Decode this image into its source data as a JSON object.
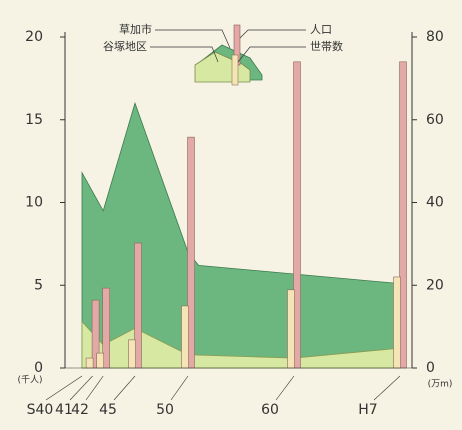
{
  "chart_data": {
    "type": "area_bar",
    "xlim": [
      40,
      70
    ],
    "xticks": [
      {
        "value": 40,
        "label": "S40"
      },
      41,
      42,
      45,
      50,
      60,
      {
        "value": 70,
        "label": "H7"
      }
    ],
    "ylim": [
      0,
      20
    ],
    "yticks": [
      0,
      5,
      10,
      15,
      20
    ],
    "y_unit": "(千人)",
    "y2lim": [
      0,
      80
    ],
    "y2ticks": [
      0,
      20,
      40,
      60,
      80
    ],
    "y2_unit": "(万m)",
    "series": [
      {
        "name": "草加市",
        "kind": "area",
        "color": "#6cb67f",
        "x": [
          40,
          42,
          45,
          50,
          51,
          70
        ],
        "values": [
          11.8,
          9.5,
          16,
          7,
          6.2,
          5.1
        ]
      },
      {
        "name": "谷塚地区",
        "kind": "area",
        "color": "#d6e8a2",
        "x": [
          40,
          42,
          45,
          50,
          60,
          70
        ],
        "values": [
          2.8,
          1.4,
          2.4,
          0.8,
          0.6,
          1.2
        ]
      },
      {
        "name": "人口",
        "kind": "bar",
        "axis": "y2",
        "color": "#e2a9a6",
        "x": [
          41,
          42,
          45,
          50,
          60,
          70
        ],
        "values": [
          16.4,
          19.3,
          30.2,
          55.8,
          74,
          74
        ]
      },
      {
        "name": "世帯数",
        "kind": "bar",
        "axis": "y2",
        "color": "#f4e4b6",
        "x": [
          41,
          42,
          45,
          50,
          60,
          70
        ],
        "values": [
          2.4,
          3.6,
          6.8,
          15,
          18.9,
          22
        ]
      }
    ]
  }
}
